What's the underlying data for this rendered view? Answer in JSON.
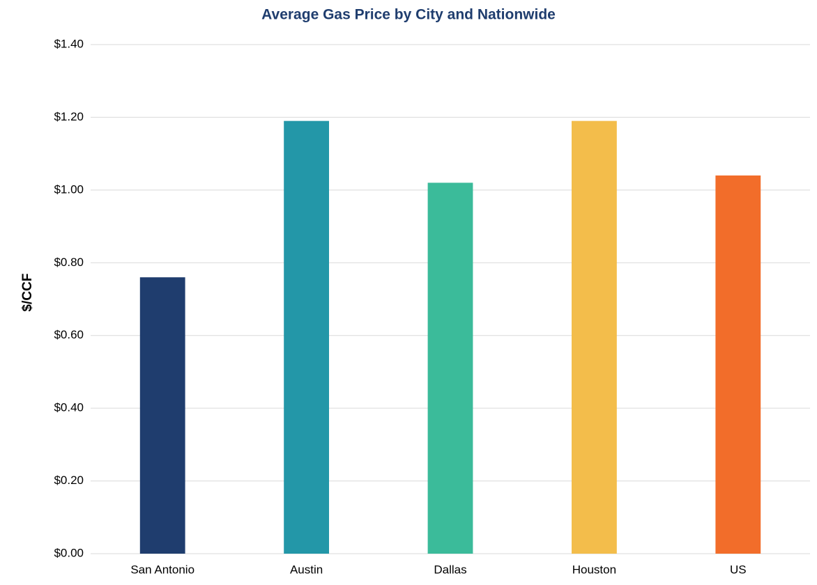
{
  "chart_data": {
    "type": "bar",
    "title": "Average Gas Price by City and Nationwide",
    "y_label": "$/CCF",
    "categories": [
      "San Antonio",
      "Austin",
      "Dallas",
      "Houston",
      "US"
    ],
    "values": [
      0.76,
      1.19,
      1.02,
      1.19,
      1.04
    ],
    "colors": [
      "#1f3d6e",
      "#2397a8",
      "#3bbb9a",
      "#f3bd4b",
      "#f26d2a"
    ],
    "ylim": [
      0,
      1.4
    ],
    "yticks": [
      {
        "value": 0,
        "label": "$0.00"
      },
      {
        "value": 0.2,
        "label": "$0.20"
      },
      {
        "value": 0.4,
        "label": "$0.40"
      },
      {
        "value": 0.6,
        "label": "$0.60"
      },
      {
        "value": 0.8,
        "label": "$0.80"
      },
      {
        "value": 1,
        "label": "$1.00"
      },
      {
        "value": 1.2,
        "label": "$1.20"
      },
      {
        "value": 1.4,
        "label": "$1.40"
      }
    ],
    "grid": true
  }
}
